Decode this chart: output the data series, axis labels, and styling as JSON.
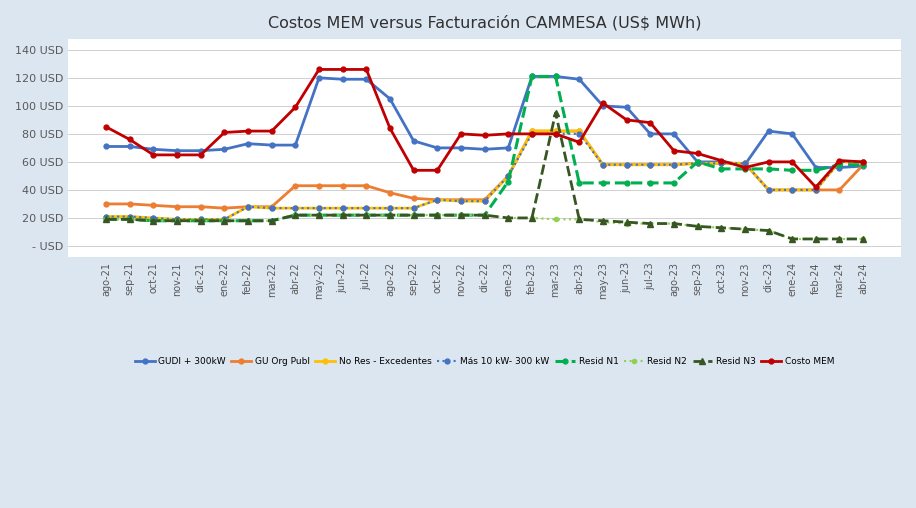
{
  "title": "Costos MEM versus Facturación CAMMESA (US$ MWh)",
  "background_color": "#dce6f1",
  "plot_bg_color": "#ffffff",
  "ylim": [
    -8,
    148
  ],
  "yticks": [
    0,
    20,
    40,
    60,
    80,
    100,
    120,
    140
  ],
  "months": [
    "ago-21",
    "sep-21",
    "oct-21",
    "nov-21",
    "dic-21",
    "ene-22",
    "feb-22",
    "mar-22",
    "abr-22",
    "may-22",
    "jun-22",
    "jul-22",
    "ago-22",
    "sep-22",
    "oct-22",
    "nov-22",
    "dic-22",
    "ene-23",
    "feb-23",
    "mar-23",
    "abr-23",
    "may-23",
    "jun-23",
    "jul-23",
    "ago-23",
    "sep-23",
    "oct-23",
    "nov-23",
    "dic-23",
    "ene-24",
    "feb-24",
    "mar-24",
    "abr-24"
  ],
  "series": {
    "GUDI + 300kW": {
      "color": "#4472C4",
      "lw": 2.0,
      "marker": "o",
      "markersize": 3.5,
      "linestyle": "-",
      "values": [
        71,
        71,
        69,
        68,
        68,
        69,
        73,
        72,
        72,
        120,
        119,
        119,
        105,
        75,
        70,
        70,
        69,
        70,
        121,
        121,
        119,
        100,
        99,
        80,
        80,
        60,
        60,
        58,
        82,
        80,
        56,
        56,
        57
      ]
    },
    "GU Org Publ": {
      "color": "#ED7D31",
      "lw": 2.0,
      "marker": "o",
      "markersize": 3.5,
      "linestyle": "-",
      "values": [
        30,
        30,
        29,
        28,
        28,
        27,
        28,
        28,
        43,
        43,
        43,
        43,
        38,
        34,
        33,
        33,
        33,
        50,
        82,
        82,
        82,
        58,
        58,
        58,
        58,
        59,
        59,
        59,
        40,
        40,
        40,
        40,
        58
      ]
    },
    "No Res - Excedentes": {
      "color": "#FFC000",
      "lw": 2.0,
      "marker": "o",
      "markersize": 3.5,
      "linestyle": "-",
      "values": [
        21,
        21,
        20,
        19,
        19,
        19,
        28,
        27,
        27,
        27,
        27,
        27,
        27,
        27,
        33,
        32,
        32,
        50,
        82,
        82,
        82,
        58,
        58,
        58,
        58,
        59,
        59,
        59,
        40,
        40,
        40,
        60,
        60
      ]
    },
    "Más 10 kW- 300 kW": {
      "color": "#4472C4",
      "lw": 1.5,
      "marker": "o",
      "markersize": 3.5,
      "linestyle": ":",
      "values": [
        21,
        21,
        20,
        19,
        19,
        19,
        28,
        27,
        27,
        27,
        27,
        27,
        27,
        27,
        33,
        32,
        32,
        50,
        80,
        80,
        80,
        58,
        58,
        58,
        58,
        59,
        59,
        59,
        40,
        40,
        40,
        60,
        60
      ]
    },
    "Resid N1": {
      "color": "#00B050",
      "lw": 2.2,
      "marker": "o",
      "markersize": 3.5,
      "linestyle": "--",
      "values": [
        19,
        19,
        18,
        18,
        18,
        18,
        18,
        18,
        22,
        22,
        22,
        22,
        22,
        22,
        22,
        22,
        22,
        46,
        121,
        121,
        45,
        45,
        45,
        45,
        45,
        60,
        55,
        55,
        55,
        54,
        54,
        58,
        58
      ]
    },
    "Resid N2": {
      "color": "#92D050",
      "lw": 1.5,
      "marker": "o",
      "markersize": 3,
      "linestyle": ":",
      "values": [
        19,
        19,
        18,
        18,
        18,
        18,
        18,
        18,
        22,
        22,
        22,
        22,
        22,
        22,
        22,
        22,
        22,
        20,
        20,
        19,
        19,
        17,
        16,
        16,
        16,
        14,
        13,
        12,
        11,
        5,
        5,
        5,
        5
      ]
    },
    "Resid N3": {
      "color": "#375623",
      "lw": 2.0,
      "marker": "^",
      "markersize": 4,
      "linestyle": "--",
      "values": [
        19,
        19,
        18,
        18,
        18,
        18,
        18,
        18,
        22,
        22,
        22,
        22,
        22,
        22,
        22,
        22,
        22,
        20,
        20,
        95,
        19,
        18,
        17,
        16,
        16,
        14,
        13,
        12,
        11,
        5,
        5,
        5,
        5
      ]
    },
    "Costo MEM": {
      "color": "#C00000",
      "lw": 2.0,
      "marker": "o",
      "markersize": 3.5,
      "linestyle": "-",
      "values": [
        85,
        76,
        65,
        65,
        65,
        81,
        82,
        82,
        99,
        126,
        126,
        126,
        84,
        54,
        54,
        80,
        79,
        80,
        80,
        80,
        74,
        102,
        90,
        88,
        68,
        66,
        61,
        56,
        60,
        60,
        42,
        61,
        60
      ]
    }
  },
  "legend_order": [
    "GUDI + 300kW",
    "GU Org Publ",
    "No Res - Excedentes",
    "Más 10 kW- 300 kW",
    "Resid N1",
    "Resid N2",
    "Resid N3",
    "Costo MEM"
  ],
  "legend_labels": [
    "GUDI + 300kW",
    "GU Org Publ",
    "No Res - Excedentes",
    "Más 10 kW- 300 kW",
    " - Resid N1",
    "··· Resid N2",
    "=Resid N3",
    "Costo MEM"
  ]
}
